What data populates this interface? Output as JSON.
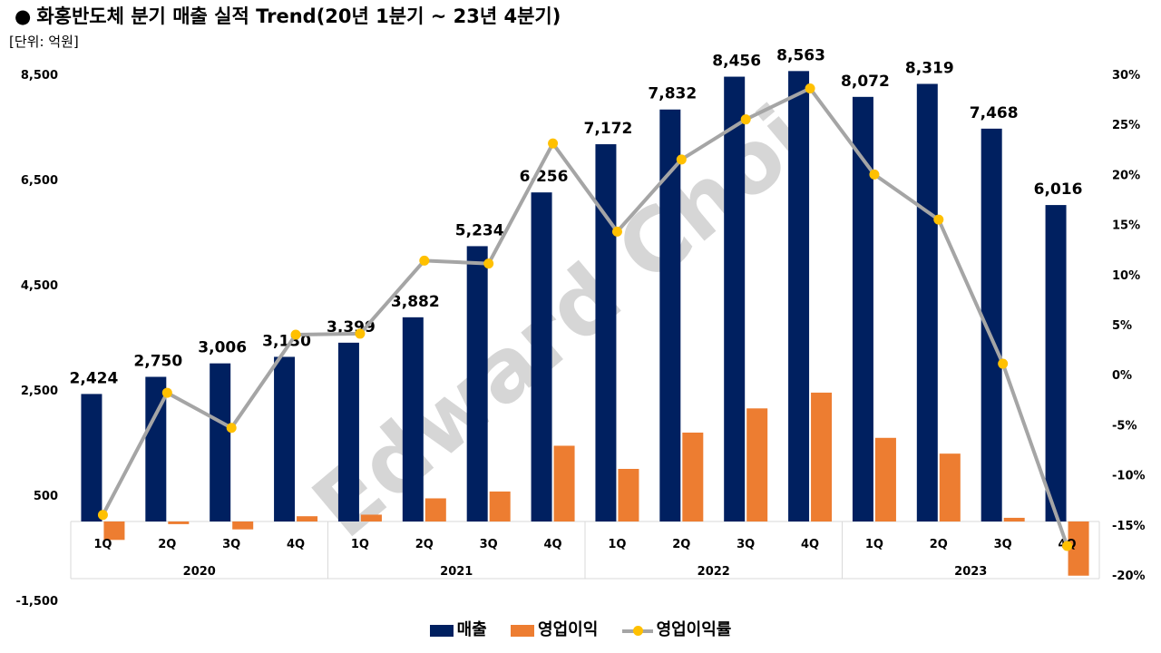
{
  "header": {
    "bullet": "●",
    "title": "화홍반도체 분기 매출 실적 Trend(20년 1분기 ~ 23년 4분기)",
    "unit": "[단위: 억원]"
  },
  "watermark": "Edward Choi",
  "colors": {
    "sales": "#002060",
    "op_income": "#ED7D31",
    "margin": "#A5A5A5",
    "margin_marker": "#FFC000"
  },
  "chart_data": {
    "type": "bar",
    "title": "화홍반도체 분기 매출 실적 Trend(20년 1분기 ~ 23년 4분기)",
    "quarters": [
      "1Q",
      "2Q",
      "3Q",
      "4Q",
      "1Q",
      "2Q",
      "3Q",
      "4Q",
      "1Q",
      "2Q",
      "3Q",
      "4Q",
      "1Q",
      "2Q",
      "3Q",
      "4Q"
    ],
    "years": [
      "2020",
      "2021",
      "2022",
      "2023"
    ],
    "series": [
      {
        "name": "매출",
        "type": "bar",
        "values": [
          2424,
          2750,
          3006,
          3130,
          3399,
          3882,
          5234,
          6256,
          7172,
          7832,
          8456,
          8563,
          8072,
          8319,
          7468,
          6016
        ],
        "labels": [
          "2,424",
          "2,750",
          "3,006",
          "3,130",
          "3,399",
          "3,882",
          "5,234",
          "6,256",
          "7,172",
          "7,832",
          "8,456",
          "8,563",
          "8,072",
          "8,319",
          "7,468",
          "6,016"
        ]
      },
      {
        "name": "영업이익",
        "type": "bar",
        "values": [
          -350,
          -50,
          -150,
          100,
          130,
          440,
          570,
          1440,
          1000,
          1690,
          2150,
          2450,
          1590,
          1290,
          70,
          -1030
        ]
      },
      {
        "name": "영업이익률",
        "type": "line",
        "axis": "secondary",
        "values": [
          -14.0,
          -1.8,
          -5.3,
          4.0,
          4.1,
          11.4,
          11.1,
          23.1,
          14.3,
          21.5,
          25.5,
          28.6,
          20.0,
          15.5,
          1.1,
          -17.1
        ]
      }
    ],
    "y_left": {
      "min": -1500,
      "max": 8500,
      "ticks": [
        8500,
        6500,
        4500,
        2500,
        500,
        -1500
      ],
      "tick_labels": [
        "8,500",
        "6,500",
        "4,500",
        "2,500",
        "500",
        "-1,500"
      ]
    },
    "y_right": {
      "min": -20,
      "max": 30,
      "ticks": [
        30,
        25,
        20,
        15,
        10,
        5,
        0,
        -5,
        -10,
        -15,
        -20
      ],
      "tick_labels": [
        "30%",
        "25%",
        "20%",
        "15%",
        "10%",
        "5%",
        "0%",
        "-5%",
        "-10%",
        "-15%",
        "-20%"
      ]
    },
    "grid": false,
    "legend_position": "bottom"
  }
}
